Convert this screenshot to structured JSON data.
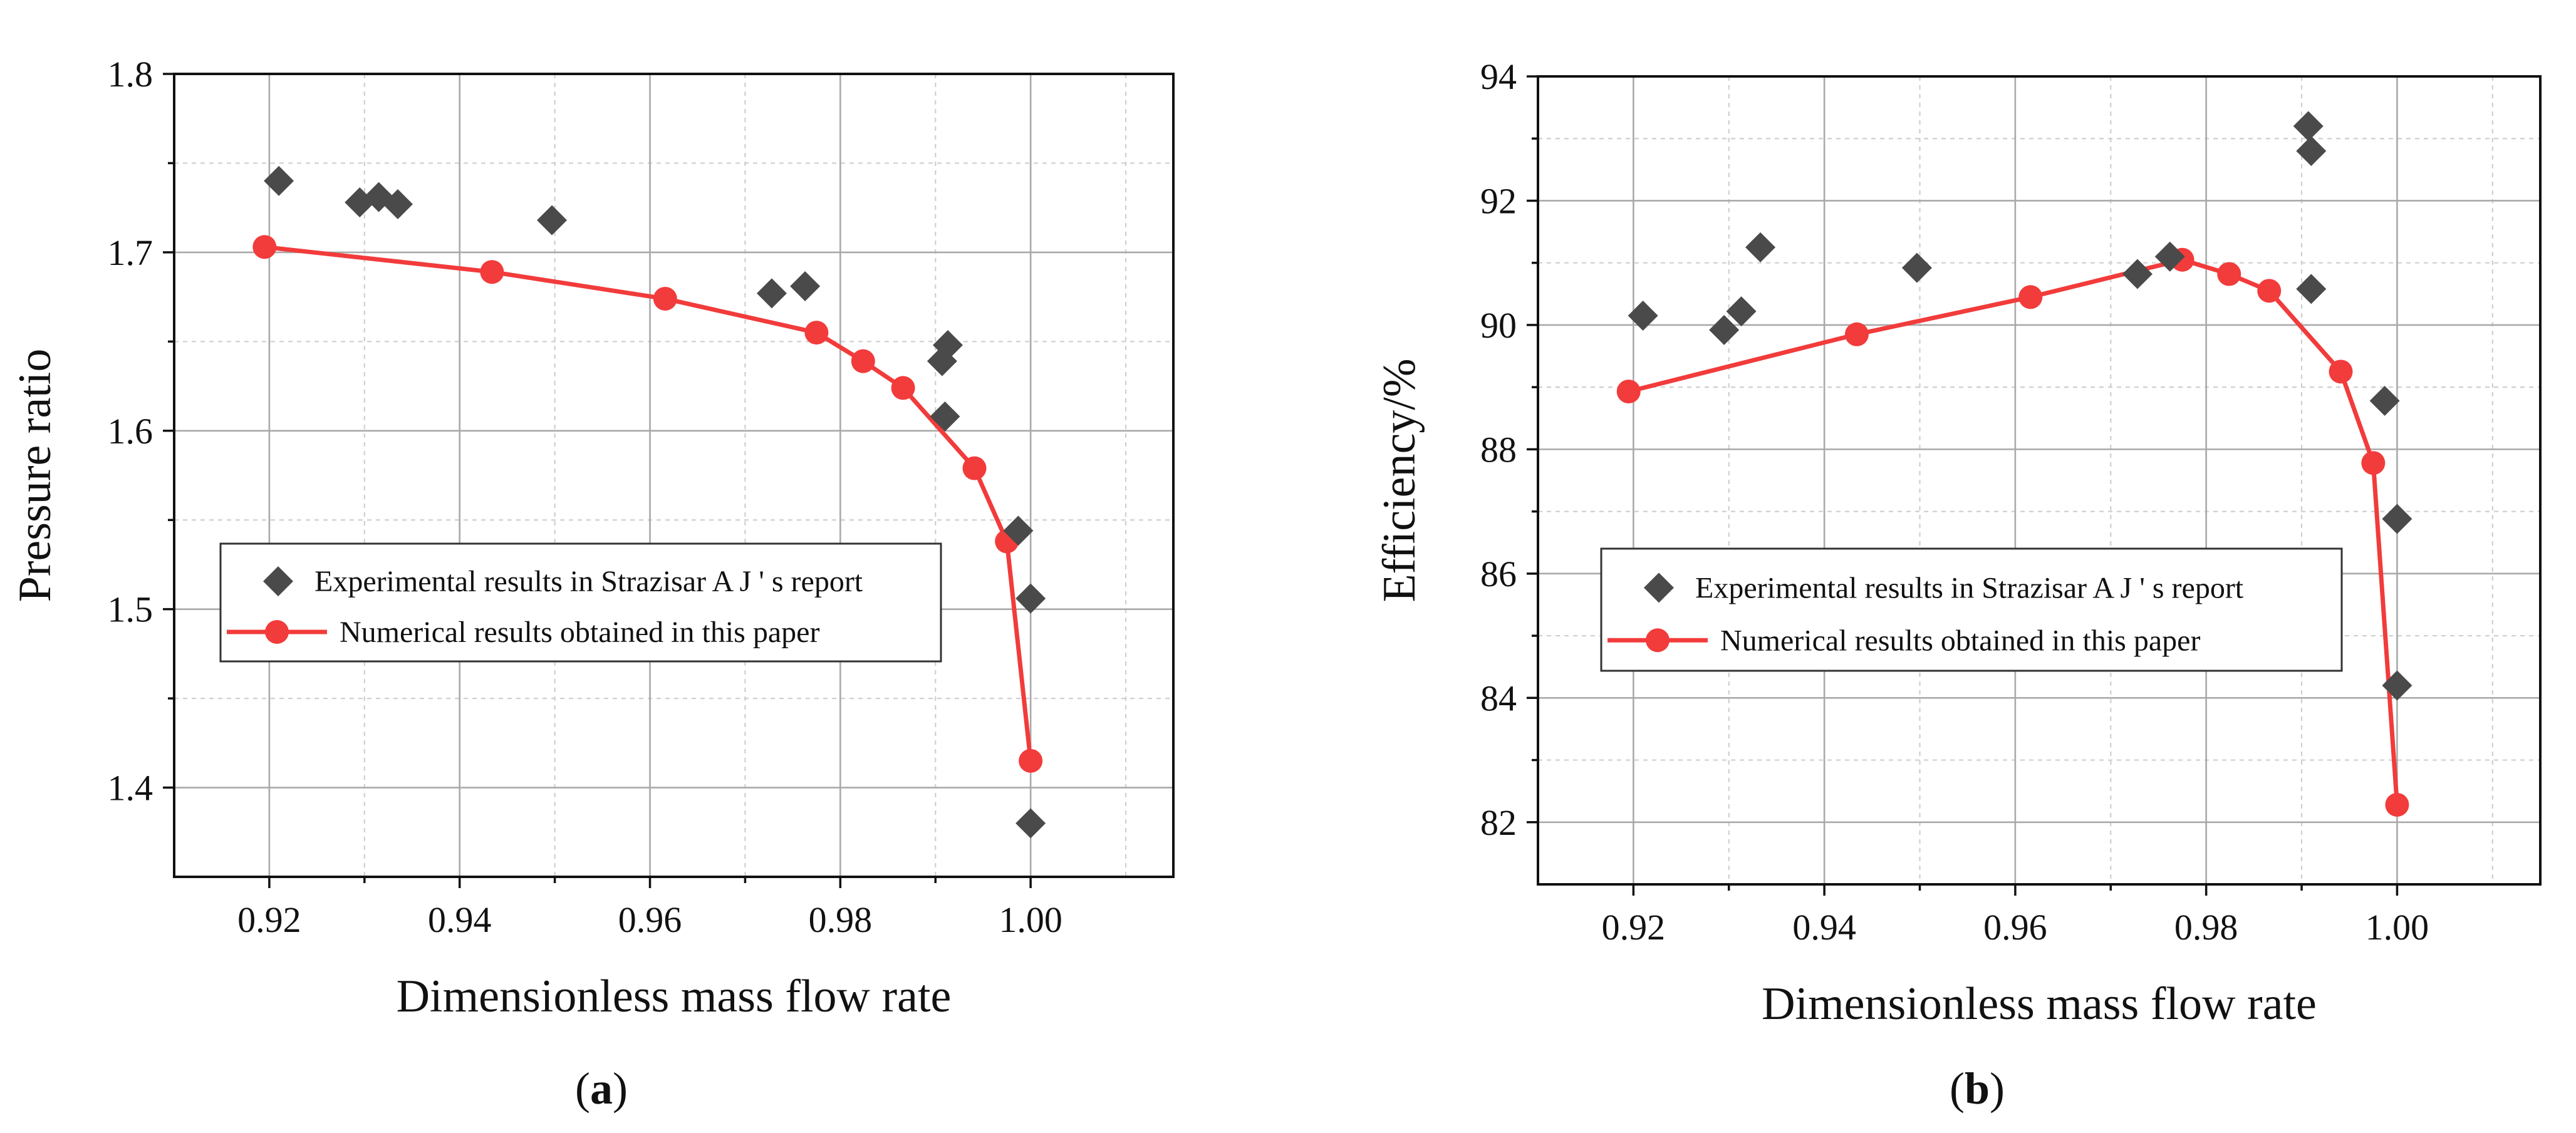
{
  "colors": {
    "experimental": "#4a4a4a",
    "numerical": "#f23b3b",
    "grid": "#a9a9a9",
    "axis": "#111111"
  },
  "chart_data": [
    {
      "type": "scatter+line",
      "panel_label": "a",
      "xlabel": "Dimensionless mass flow rate",
      "ylabel": "Pressure ratio",
      "xlim": [
        0.91,
        1.015
      ],
      "ylim": [
        1.35,
        1.8
      ],
      "x_ticks": [
        0.92,
        0.94,
        0.96,
        0.98,
        1.0
      ],
      "x_tick_labels": [
        "0.92",
        "0.94",
        "0.96",
        "0.98",
        "1.00"
      ],
      "y_ticks": [
        1.4,
        1.5,
        1.6,
        1.7,
        1.8
      ],
      "y_tick_labels": [
        "1.4",
        "1.5",
        "1.6",
        "1.7",
        "1.8"
      ],
      "legend_position": "lower-left",
      "series": [
        {
          "name": "Experimental results in Strazisar A J ' s report",
          "marker": "diamond",
          "x": [
            0.921,
            0.9295,
            0.9315,
            0.9335,
            0.9497,
            0.9728,
            0.9763,
            0.9907,
            0.991,
            0.9913,
            0.9987,
            1.0,
            1.0
          ],
          "y": [
            1.74,
            1.728,
            1.731,
            1.727,
            1.718,
            1.677,
            1.681,
            1.639,
            1.608,
            1.648,
            1.544,
            1.506,
            1.38
          ]
        },
        {
          "name": "Numerical results obtained in this paper",
          "marker": "circle-line",
          "x": [
            0.9195,
            0.9434,
            0.9616,
            0.9775,
            0.9824,
            0.9866,
            0.9941,
            0.9975,
            1.0
          ],
          "y": [
            1.703,
            1.689,
            1.674,
            1.655,
            1.639,
            1.624,
            1.579,
            1.538,
            1.415
          ]
        }
      ]
    },
    {
      "type": "scatter+line",
      "panel_label": "b",
      "xlabel": "Dimensionless mass flow rate",
      "ylabel": "Efficiency/%",
      "xlim": [
        0.91,
        1.015
      ],
      "ylim": [
        81,
        94
      ],
      "x_ticks": [
        0.92,
        0.94,
        0.96,
        0.98,
        1.0
      ],
      "x_tick_labels": [
        "0.92",
        "0.94",
        "0.96",
        "0.98",
        "1.00"
      ],
      "y_ticks": [
        82,
        84,
        86,
        88,
        90,
        92,
        94
      ],
      "y_tick_labels": [
        "82",
        "84",
        "86",
        "88",
        "90",
        "92",
        "94"
      ],
      "legend_position": "lower-left",
      "series": [
        {
          "name": "Experimental results in Strazisar A J ' s report",
          "marker": "diamond",
          "x": [
            0.921,
            0.9295,
            0.9313,
            0.9333,
            0.9497,
            0.9728,
            0.9762,
            0.9907,
            0.991,
            0.991,
            0.9987,
            1.0,
            1.0
          ],
          "y": [
            90.15,
            89.92,
            90.22,
            91.25,
            90.92,
            90.82,
            91.1,
            93.2,
            92.8,
            90.58,
            88.78,
            86.88,
            84.2
          ]
        },
        {
          "name": "Numerical results obtained in this paper",
          "marker": "circle-line",
          "x": [
            0.9195,
            0.9434,
            0.9616,
            0.9775,
            0.9824,
            0.9866,
            0.9941,
            0.9975,
            1.0
          ],
          "y": [
            88.93,
            89.85,
            90.45,
            91.05,
            90.82,
            90.55,
            89.25,
            87.78,
            82.28
          ]
        }
      ]
    }
  ]
}
